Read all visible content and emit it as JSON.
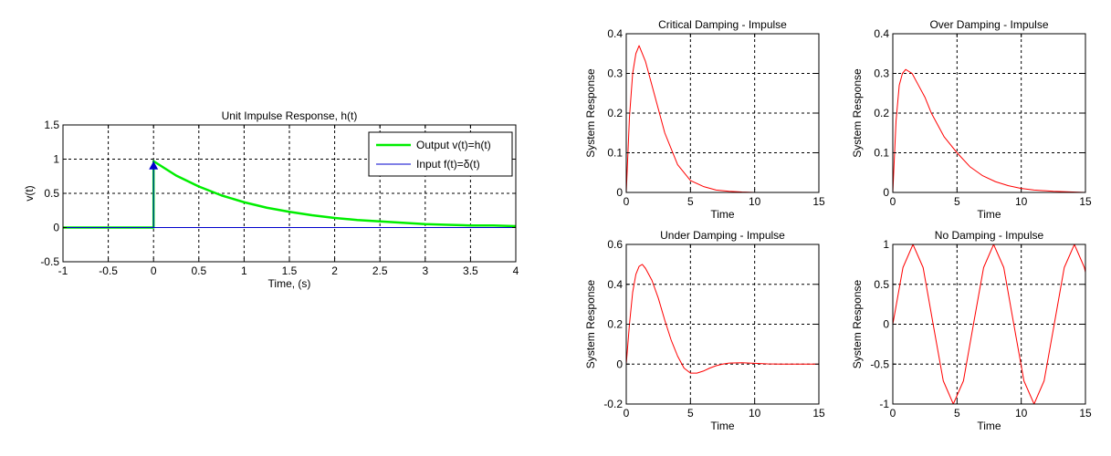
{
  "colors": {
    "grid": "#000000",
    "output_line": "#00ee00",
    "input_line": "#0000cc",
    "response_line": "#ff0000"
  },
  "chart_data": [
    {
      "type": "line",
      "title": "Unit Impulse Response, h(t)",
      "xlabel": "Time, (s)",
      "ylabel": "v(t)",
      "xlim": [
        -1,
        4
      ],
      "ylim": [
        -0.5,
        1.5
      ],
      "xticks": [
        -1,
        -0.5,
        0,
        0.5,
        1,
        1.5,
        2,
        2.5,
        3,
        3.5,
        4
      ],
      "xtick_labels": [
        "-1",
        "-0.5",
        "0",
        "0.5",
        "1",
        "1.5",
        "2",
        "2.5",
        "3",
        "3.5",
        "4"
      ],
      "yticks": [
        -0.5,
        0,
        0.5,
        1,
        1.5
      ],
      "ytick_labels": [
        "-0.5",
        "0",
        "0.5",
        "1",
        "1.5"
      ],
      "grid": true,
      "legend": "top-right",
      "series": [
        {
          "name": "Output v(t)=h(t)",
          "color": "#00ee00",
          "x": [
            -1,
            0,
            0,
            0.25,
            0.5,
            0.75,
            1,
            1.25,
            1.5,
            1.75,
            2,
            2.25,
            2.5,
            2.75,
            3,
            3.25,
            3.5,
            3.75,
            4
          ],
          "y": [
            0,
            0,
            0.97,
            0.76,
            0.6,
            0.47,
            0.37,
            0.29,
            0.23,
            0.18,
            0.14,
            0.11,
            0.09,
            0.07,
            0.05,
            0.04,
            0.03,
            0.03,
            0.02
          ]
        },
        {
          "name": "Input f(t)=δ(t)",
          "color": "#0000cc",
          "x": [
            -1,
            0,
            0,
            0,
            4
          ],
          "y": [
            0,
            0,
            0.97,
            0,
            0
          ],
          "arrow_at": [
            0,
            0.97
          ]
        }
      ]
    },
    {
      "type": "line",
      "title": "Critical Damping - Impulse",
      "xlabel": "Time",
      "ylabel": "System Response",
      "xlim": [
        0,
        15
      ],
      "ylim": [
        0,
        0.4
      ],
      "xticks": [
        0,
        5,
        10,
        15
      ],
      "xtick_labels": [
        "0",
        "5",
        "10",
        "15"
      ],
      "yticks": [
        0,
        0.1,
        0.2,
        0.3,
        0.4
      ],
      "ytick_labels": [
        "0",
        "0.1",
        "0.2",
        "0.3",
        "0.4"
      ],
      "grid": true,
      "series": [
        {
          "color": "#ff0000",
          "x": [
            0,
            0.25,
            0.5,
            0.75,
            1,
            1.5,
            2,
            2.5,
            3,
            3.5,
            4,
            5,
            6,
            7,
            8,
            9,
            10,
            12,
            15
          ],
          "y": [
            0,
            0.19,
            0.3,
            0.35,
            0.37,
            0.33,
            0.27,
            0.21,
            0.15,
            0.11,
            0.07,
            0.03,
            0.015,
            0.006,
            0.003,
            0.001,
            0,
            0,
            0
          ]
        }
      ]
    },
    {
      "type": "line",
      "title": "Over Damping - Impulse",
      "xlabel": "Time",
      "ylabel": "System Response",
      "xlim": [
        0,
        15
      ],
      "ylim": [
        0,
        0.4
      ],
      "xticks": [
        0,
        5,
        10,
        15
      ],
      "xtick_labels": [
        "0",
        "5",
        "10",
        "15"
      ],
      "yticks": [
        0,
        0.1,
        0.2,
        0.3,
        0.4
      ],
      "ytick_labels": [
        "0",
        "0.1",
        "0.2",
        "0.3",
        "0.4"
      ],
      "grid": true,
      "series": [
        {
          "color": "#ff0000",
          "x": [
            0,
            0.25,
            0.5,
            0.75,
            1,
            1.5,
            2,
            2.5,
            3,
            4,
            5,
            6,
            7,
            8,
            9,
            10,
            11,
            12.5,
            15
          ],
          "y": [
            0,
            0.18,
            0.27,
            0.3,
            0.31,
            0.3,
            0.27,
            0.24,
            0.2,
            0.14,
            0.1,
            0.065,
            0.042,
            0.027,
            0.017,
            0.01,
            0.006,
            0.003,
            0
          ]
        }
      ]
    },
    {
      "type": "line",
      "title": "Under Damping - Impulse",
      "xlabel": "Time",
      "ylabel": "System Response",
      "xlim": [
        0,
        15
      ],
      "ylim": [
        -0.2,
        0.6
      ],
      "xticks": [
        0,
        5,
        10,
        15
      ],
      "xtick_labels": [
        "0",
        "5",
        "10",
        "15"
      ],
      "yticks": [
        -0.2,
        0,
        0.2,
        0.4,
        0.6
      ],
      "ytick_labels": [
        "-0.2",
        "0",
        "0.2",
        "0.4",
        "0.6"
      ],
      "grid": true,
      "series": [
        {
          "color": "#ff0000",
          "x": [
            0,
            0.25,
            0.5,
            0.75,
            1,
            1.25,
            1.5,
            2,
            2.5,
            3,
            3.5,
            4,
            4.5,
            5,
            5.5,
            6,
            6.5,
            7,
            7.5,
            8,
            9,
            10,
            11,
            12,
            15
          ],
          "y": [
            0,
            0.2,
            0.36,
            0.45,
            0.49,
            0.5,
            0.48,
            0.42,
            0.33,
            0.22,
            0.12,
            0.04,
            -0.02,
            -0.045,
            -0.045,
            -0.035,
            -0.02,
            -0.008,
            0,
            0.005,
            0.007,
            0.004,
            0.001,
            0,
            0
          ]
        }
      ]
    },
    {
      "type": "line",
      "title": "No Damping - Impulse",
      "xlabel": "Time",
      "ylabel": "System Response",
      "xlim": [
        0,
        15
      ],
      "ylim": [
        -1,
        1
      ],
      "xticks": [
        0,
        5,
        10,
        15
      ],
      "xtick_labels": [
        "0",
        "5",
        "10",
        "15"
      ],
      "yticks": [
        -1,
        -0.5,
        0,
        0.5,
        1
      ],
      "ytick_labels": [
        "-1",
        "-0.5",
        "0",
        "0.5",
        "1"
      ],
      "grid": true,
      "series": [
        {
          "color": "#ff0000",
          "function": "sin(t)",
          "x": [
            0,
            0.79,
            1.57,
            2.36,
            3.14,
            3.93,
            4.71,
            5.5,
            6.28,
            7.07,
            7.85,
            8.64,
            9.42,
            10.21,
            11,
            11.78,
            12.57,
            13.35,
            14.14,
            14.92,
            15
          ],
          "y": [
            0,
            0.71,
            1,
            0.71,
            0,
            -0.71,
            -1,
            -0.71,
            0,
            0.71,
            1,
            0.71,
            0,
            -0.71,
            -1,
            -0.71,
            0,
            0.71,
            1,
            0.71,
            0.65
          ]
        }
      ]
    }
  ]
}
